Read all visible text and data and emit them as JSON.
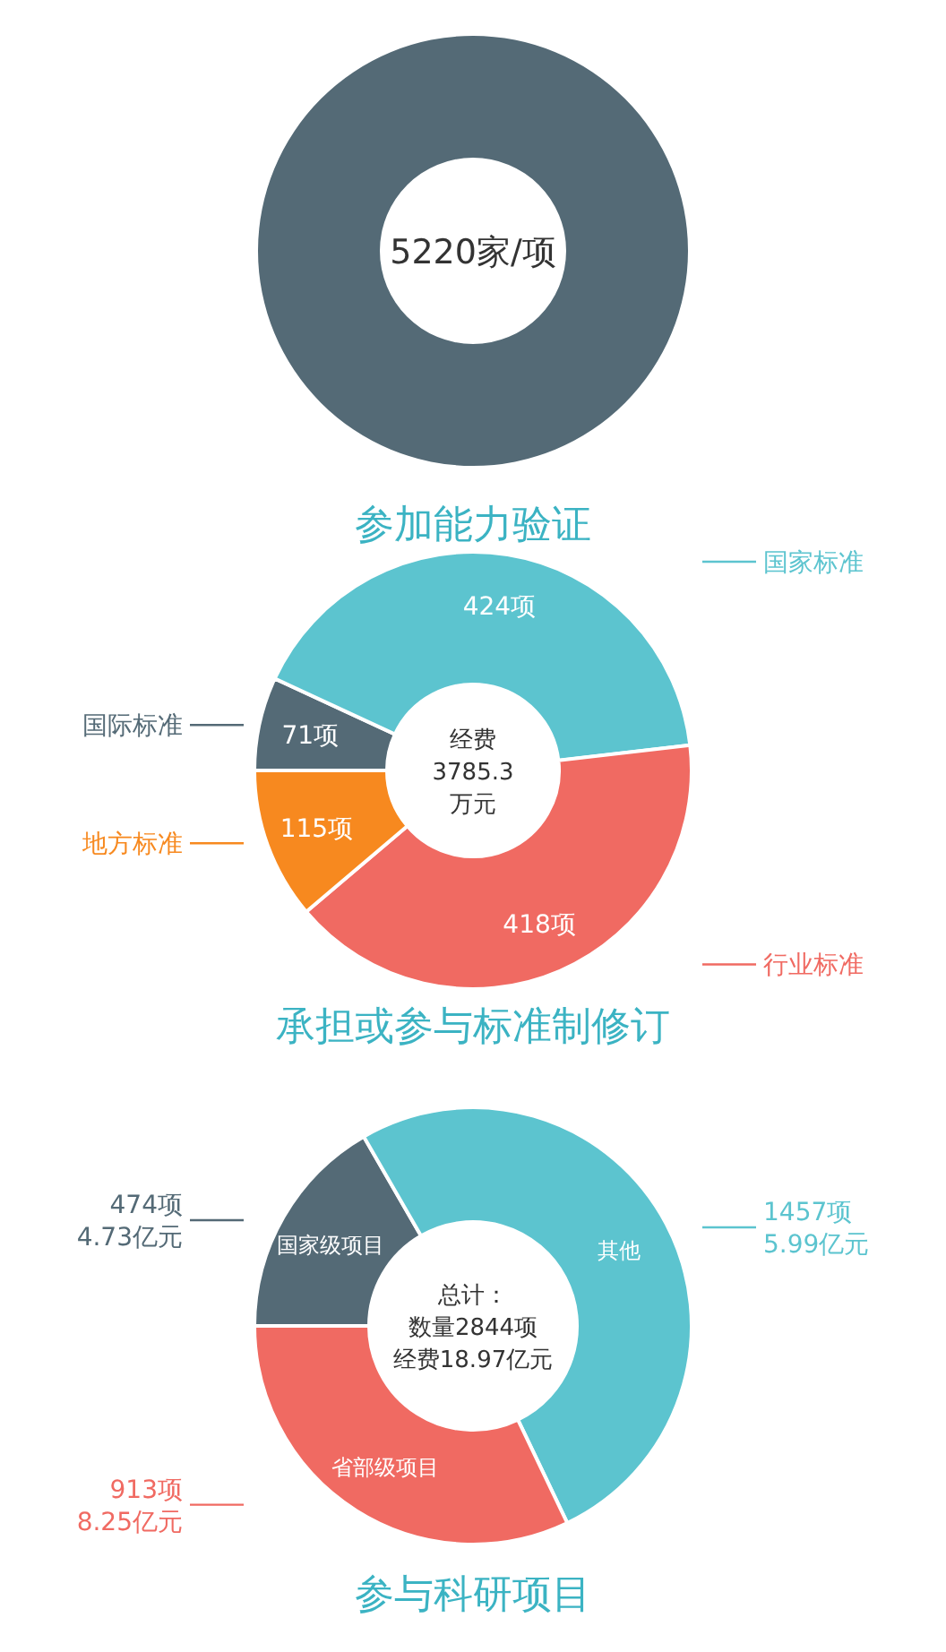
{
  "chart_data": [
    {
      "type": "pie",
      "title": "参加能力验证",
      "categories": [
        null
      ],
      "values": [
        5220
      ],
      "colors": [
        "#546a76"
      ],
      "value_labels": [
        "5220家/项"
      ]
    },
    {
      "type": "donut",
      "title": "承担或参与标准制修订",
      "legend": "right",
      "categories": [
        "国际标准",
        "国家标准",
        "行业标准",
        "地方标准"
      ],
      "values": [
        71,
        424,
        418,
        115
      ],
      "colors": [
        "#546a76",
        "#5cc4cf",
        "#f06a62",
        "#f7891f"
      ],
      "value_labels": [
        "71项",
        "424项",
        "418项",
        "115项"
      ],
      "annotations": [
        "经费",
        "3785.3",
        "万元"
      ]
    },
    {
      "type": "donut",
      "title": "参与科研项目",
      "categories": [
        "国家级项目",
        "其他",
        "省部级项目"
      ],
      "values": [
        474,
        1457,
        913
      ],
      "colors": [
        "#546a76",
        "#5cc4cf",
        "#f06a62"
      ],
      "value_labels": [
        "474项",
        "1457项",
        "913项"
      ],
      "annotations": [
        {
          "text": "4.73亿元",
          "x": "国家级项目"
        },
        {
          "text": "5.99亿元",
          "x": "其他"
        },
        {
          "text": "8.25亿元",
          "x": "省部级项目"
        },
        "总计：",
        "数量2844项",
        "经费18.97亿元"
      ]
    }
  ]
}
